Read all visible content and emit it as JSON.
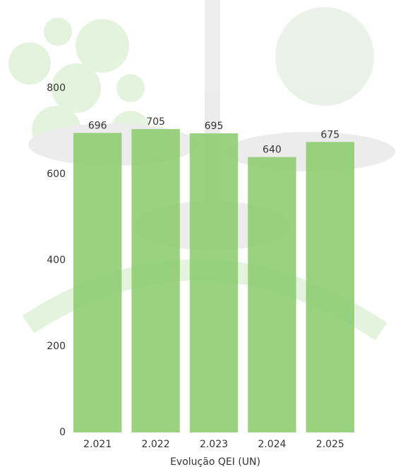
{
  "chart_data": {
    "type": "bar",
    "x_label": "Evolução QEI (UN)",
    "categories": [
      "2.021",
      "2.022",
      "2.023",
      "2.024",
      "2.025"
    ],
    "values": [
      696,
      705,
      695,
      640,
      675
    ],
    "color": "#8fcd72",
    "ylim": [
      0,
      800
    ],
    "yticks": [
      0,
      200,
      400,
      600,
      800
    ],
    "grid": false
  }
}
